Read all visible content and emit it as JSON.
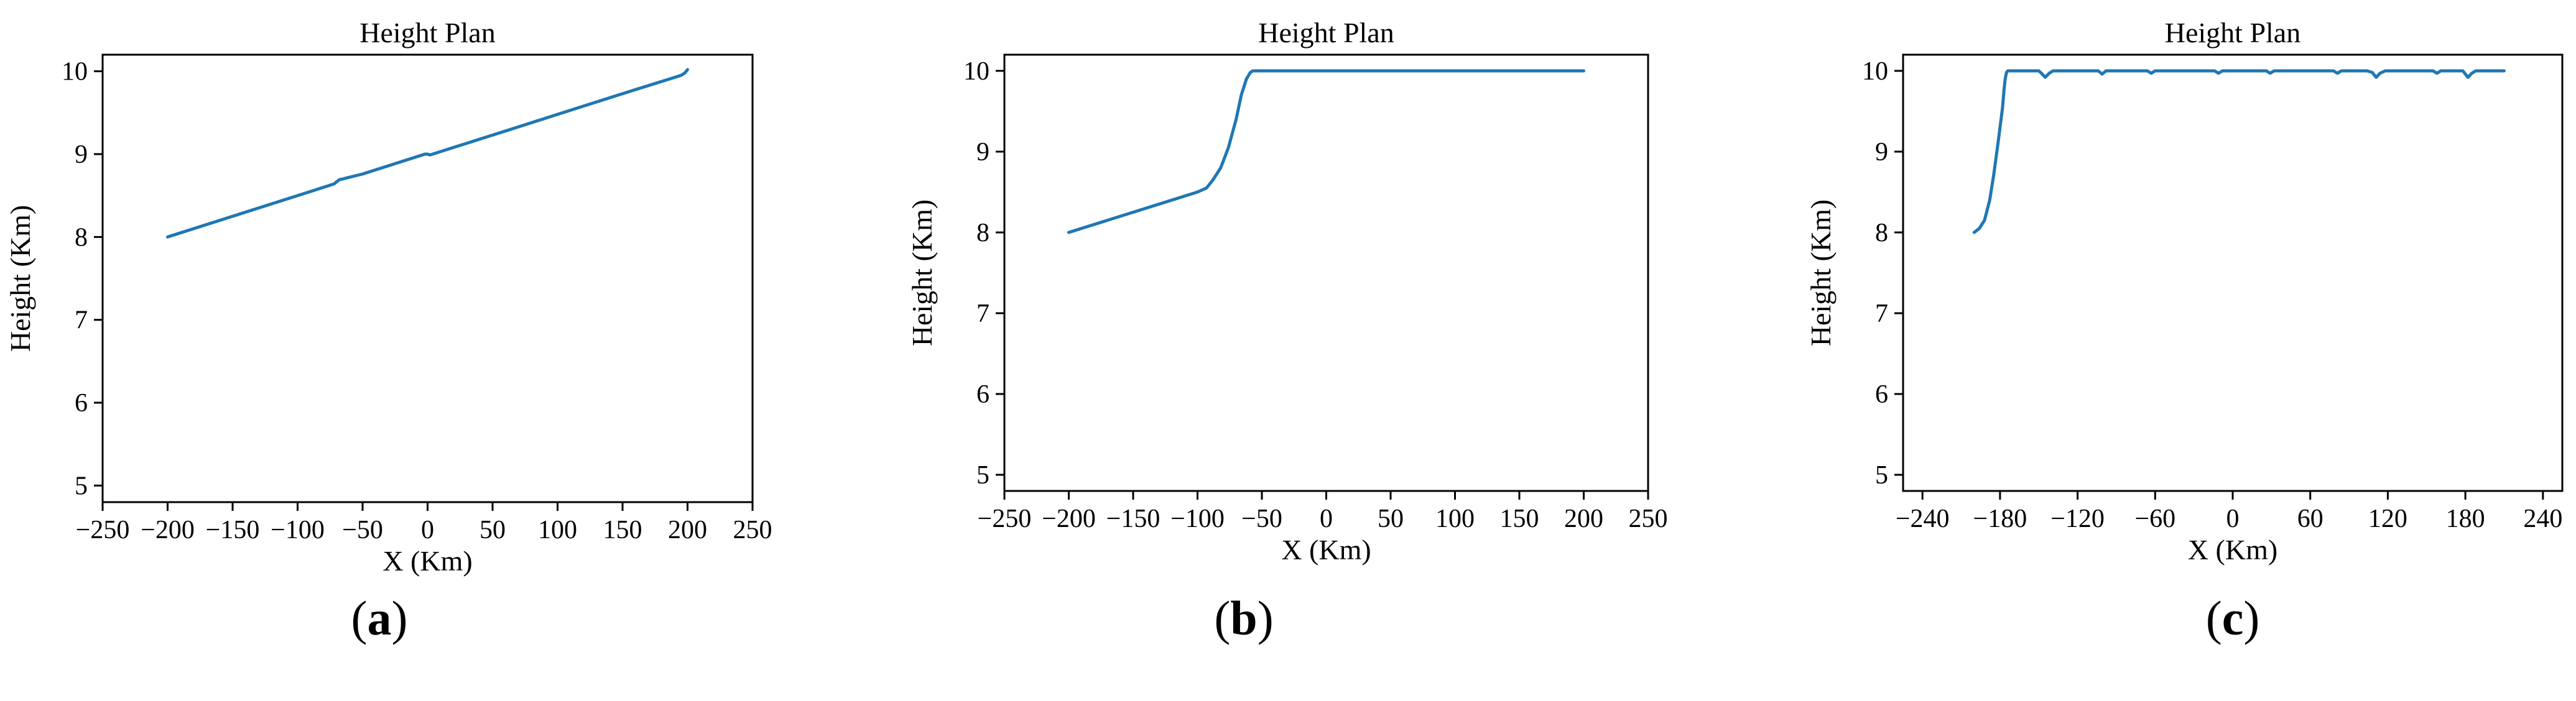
{
  "panels": [
    {
      "caption_letter": "a",
      "chart_data": {
        "type": "line",
        "title": "Height Plan",
        "xlabel": "X (Km)",
        "ylabel": "Height (Km)",
        "xlim": [
          -250,
          250
        ],
        "ylim": [
          4.8,
          10.2
        ],
        "xticks": [
          -250,
          -200,
          -150,
          -100,
          -50,
          0,
          50,
          100,
          150,
          200,
          250
        ],
        "xtick_labels": [
          "−250",
          "−200",
          "−150",
          "−100",
          "−50",
          "0",
          "50",
          "100",
          "150",
          "200",
          "250"
        ],
        "yticks": [
          5,
          6,
          7,
          8,
          9,
          10
        ],
        "ytick_labels": [
          "5",
          "6",
          "7",
          "8",
          "9",
          "10"
        ],
        "grid": false,
        "color": "#1f77b4",
        "series": [
          {
            "x": [
              -200,
              -150,
              -100,
              -72,
              -68,
              -50,
              -20,
              -2,
              0,
              2,
              20,
              60,
              100,
              150,
              195,
              198,
              200
            ],
            "y": [
              8.0,
              8.25,
              8.5,
              8.64,
              8.69,
              8.76,
              8.91,
              9.0,
              9.0,
              8.99,
              9.08,
              9.28,
              9.48,
              9.73,
              9.95,
              9.98,
              10.02
            ]
          }
        ]
      }
    },
    {
      "caption_letter": "b",
      "chart_data": {
        "type": "line",
        "title": "Height Plan",
        "xlabel": "X (Km)",
        "ylabel": "Height (Km)",
        "xlim": [
          -250,
          250
        ],
        "ylim": [
          4.8,
          10.2
        ],
        "xticks": [
          -250,
          -200,
          -150,
          -100,
          -50,
          0,
          50,
          100,
          150,
          200,
          250
        ],
        "xtick_labels": [
          "−250",
          "−200",
          "−150",
          "−100",
          "−50",
          "0",
          "50",
          "100",
          "150",
          "200",
          "250"
        ],
        "yticks": [
          5,
          6,
          7,
          8,
          9,
          10
        ],
        "ytick_labels": [
          "5",
          "6",
          "7",
          "8",
          "9",
          "10"
        ],
        "grid": false,
        "color": "#1f77b4",
        "series": [
          {
            "x": [
              -200,
              -150,
              -100,
              -93,
              -88,
              -82,
              -76,
              -70,
              -66,
              -62,
              -59,
              -57,
              -55,
              0,
              100,
              200
            ],
            "y": [
              8.0,
              8.25,
              8.5,
              8.55,
              8.65,
              8.8,
              9.05,
              9.4,
              9.7,
              9.9,
              9.98,
              10.0,
              10.0,
              10.0,
              10.0,
              10.0
            ]
          }
        ]
      }
    },
    {
      "caption_letter": "c",
      "chart_data": {
        "type": "line",
        "title": "Height Plan",
        "xlabel": "X (Km)",
        "ylabel": "Height (Km)",
        "xlim": [
          -255,
          255
        ],
        "ylim": [
          4.8,
          10.2
        ],
        "xticks": [
          -240,
          -180,
          -120,
          -60,
          0,
          60,
          120,
          180,
          240
        ],
        "xtick_labels": [
          "−240",
          "−180",
          "−120",
          "−60",
          "0",
          "60",
          "120",
          "180",
          "240"
        ],
        "yticks": [
          5,
          6,
          7,
          8,
          9,
          10
        ],
        "ytick_labels": [
          "5",
          "6",
          "7",
          "8",
          "9",
          "10"
        ],
        "grid": false,
        "color": "#1f77b4",
        "series": [
          {
            "x": [
              -200,
              -196,
              -192,
              -188,
              -185,
              -182,
              -180,
              -178,
              -177,
              -176,
              -175,
              -174,
              -170,
              -160,
              -150,
              -148,
              -145,
              -142,
              -139,
              -136,
              -120,
              -104,
              -101,
              -98,
              -80,
              -66,
              -63,
              -60,
              -20,
              -14,
              -11,
              -8,
              20,
              26,
              29,
              32,
              60,
              78,
              81,
              84,
              100,
              104,
              108,
              111,
              114,
              118,
              140,
              155,
              158,
              161,
              175,
              178,
              182,
              185,
              188,
              200,
              210
            ],
            "y": [
              8.0,
              8.05,
              8.15,
              8.4,
              8.7,
              9.05,
              9.3,
              9.55,
              9.75,
              9.9,
              9.98,
              10.0,
              10.0,
              10.0,
              10.0,
              9.97,
              9.92,
              9.97,
              10.0,
              10.0,
              10.0,
              10.0,
              9.96,
              10.0,
              10.0,
              10.0,
              9.97,
              10.0,
              10.0,
              10.0,
              9.97,
              10.0,
              10.0,
              10.0,
              9.97,
              10.0,
              10.0,
              10.0,
              9.97,
              10.0,
              10.0,
              10.0,
              9.98,
              9.92,
              9.97,
              10.0,
              10.0,
              10.0,
              9.97,
              10.0,
              10.0,
              10.0,
              9.92,
              9.97,
              10.0,
              10.0,
              10.0
            ]
          }
        ]
      }
    }
  ]
}
